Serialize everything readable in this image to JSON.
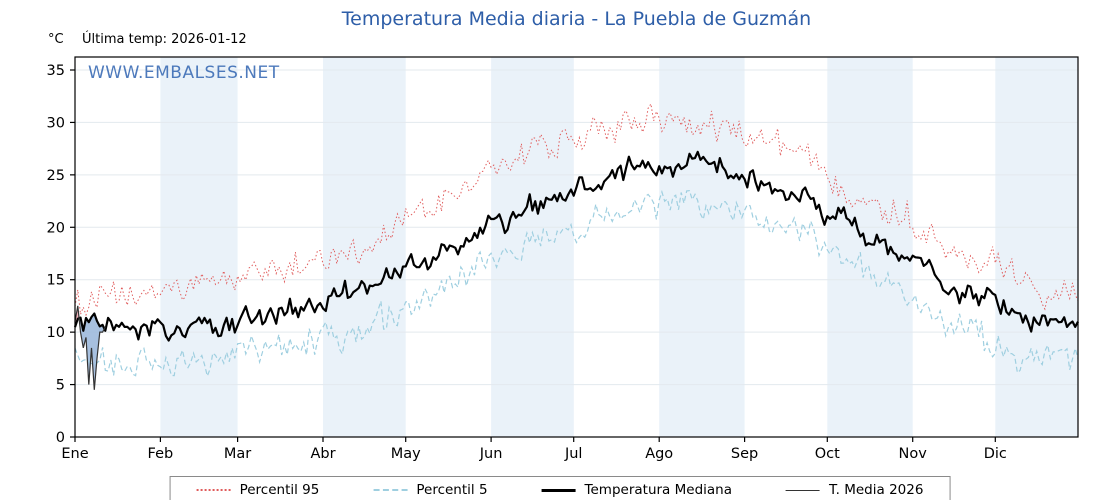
{
  "watermark": "WWW.EMBALSES.NET",
  "y_axis_unit": "°C",
  "last_temp_label": "Última temp: 2026-01-12",
  "colors": {
    "title": "#2e5ea8",
    "watermark": "#3b6cb5",
    "band": "#eaf2f9",
    "grid": "#e3e9ee",
    "axis": "#000000",
    "fill_above_median": "#f2a9b4",
    "fill_below_median": "#9db9dc"
  },
  "chart_data": {
    "type": "line",
    "title": "Temperatura Media diaria - La Puebla de Guzmán",
    "xlabel": "",
    "ylabel": "°C",
    "ylim": [
      0,
      36.2
    ],
    "y_ticks": [
      0,
      5,
      10,
      15,
      20,
      25,
      30,
      35
    ],
    "x_tick_labels": [
      "Ene",
      "Feb",
      "Mar",
      "Abr",
      "May",
      "Jun",
      "Jul",
      "Ago",
      "Sep",
      "Oct",
      "Nov",
      "Dic"
    ],
    "grid": "horizontal-faint",
    "legend_position": "bottom",
    "shaded_months": "alternating (Feb, Abr, Jun, Ago, Oct, Dic light blue)",
    "series": [
      {
        "name": "Percentil 95",
        "style": "dotted",
        "color": "#e05c5c",
        "width": 1,
        "monthly_values": [
          13,
          14.5,
          16,
          18,
          22.5,
          27.5,
          29.5,
          30.5,
          27.5,
          23,
          18.5,
          14.5
        ]
      },
      {
        "name": "Percentil 5",
        "style": "dashed",
        "color": "#9fcfe0",
        "width": 1.2,
        "monthly_values": [
          7,
          7,
          8.5,
          10.5,
          13.5,
          18.5,
          21.5,
          22.5,
          20.5,
          16,
          10.5,
          7.5
        ]
      },
      {
        "name": "Temperatura Mediana",
        "style": "solid",
        "color": "#000000",
        "width": 2.2,
        "monthly_values": [
          10.5,
          10.5,
          11.5,
          14,
          17.5,
          22,
          25,
          26.5,
          23.5,
          19.5,
          14.5,
          11
        ]
      },
      {
        "name": "T. Media 2026",
        "style": "solid",
        "color": "#333333",
        "width": 1.2,
        "daily_values": [
          11,
          12.5,
          10,
          8.5,
          9.5,
          5,
          8.5,
          4.5,
          7.5,
          10,
          10,
          10.5
        ]
      }
    ]
  }
}
